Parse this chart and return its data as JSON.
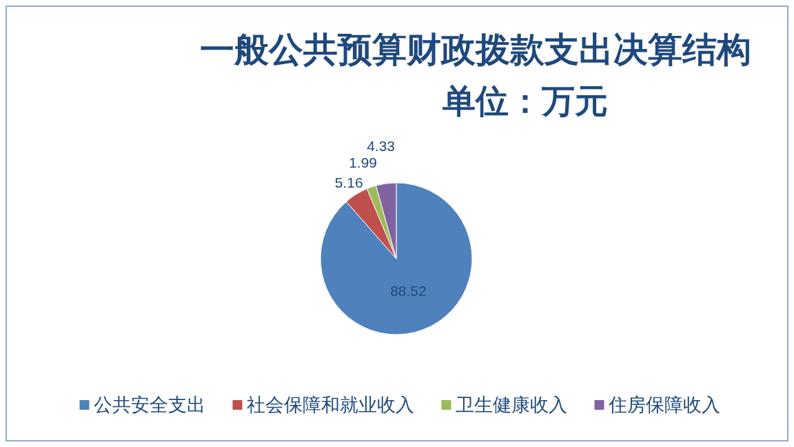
{
  "chart_data": {
    "type": "pie",
    "title": "一般公共预算财政拨款支出决算结构",
    "subtitle": "单位：万元",
    "categories": [
      "公共安全支出",
      "社会保障和就业收入",
      "卫生健康收入",
      "住房保障收入"
    ],
    "values": [
      88.52,
      5.16,
      1.99,
      4.33
    ],
    "colors": [
      "#4f81bd",
      "#c0504d",
      "#9bbb59",
      "#8064a2"
    ],
    "data_labels": true,
    "legend": "bottom"
  }
}
